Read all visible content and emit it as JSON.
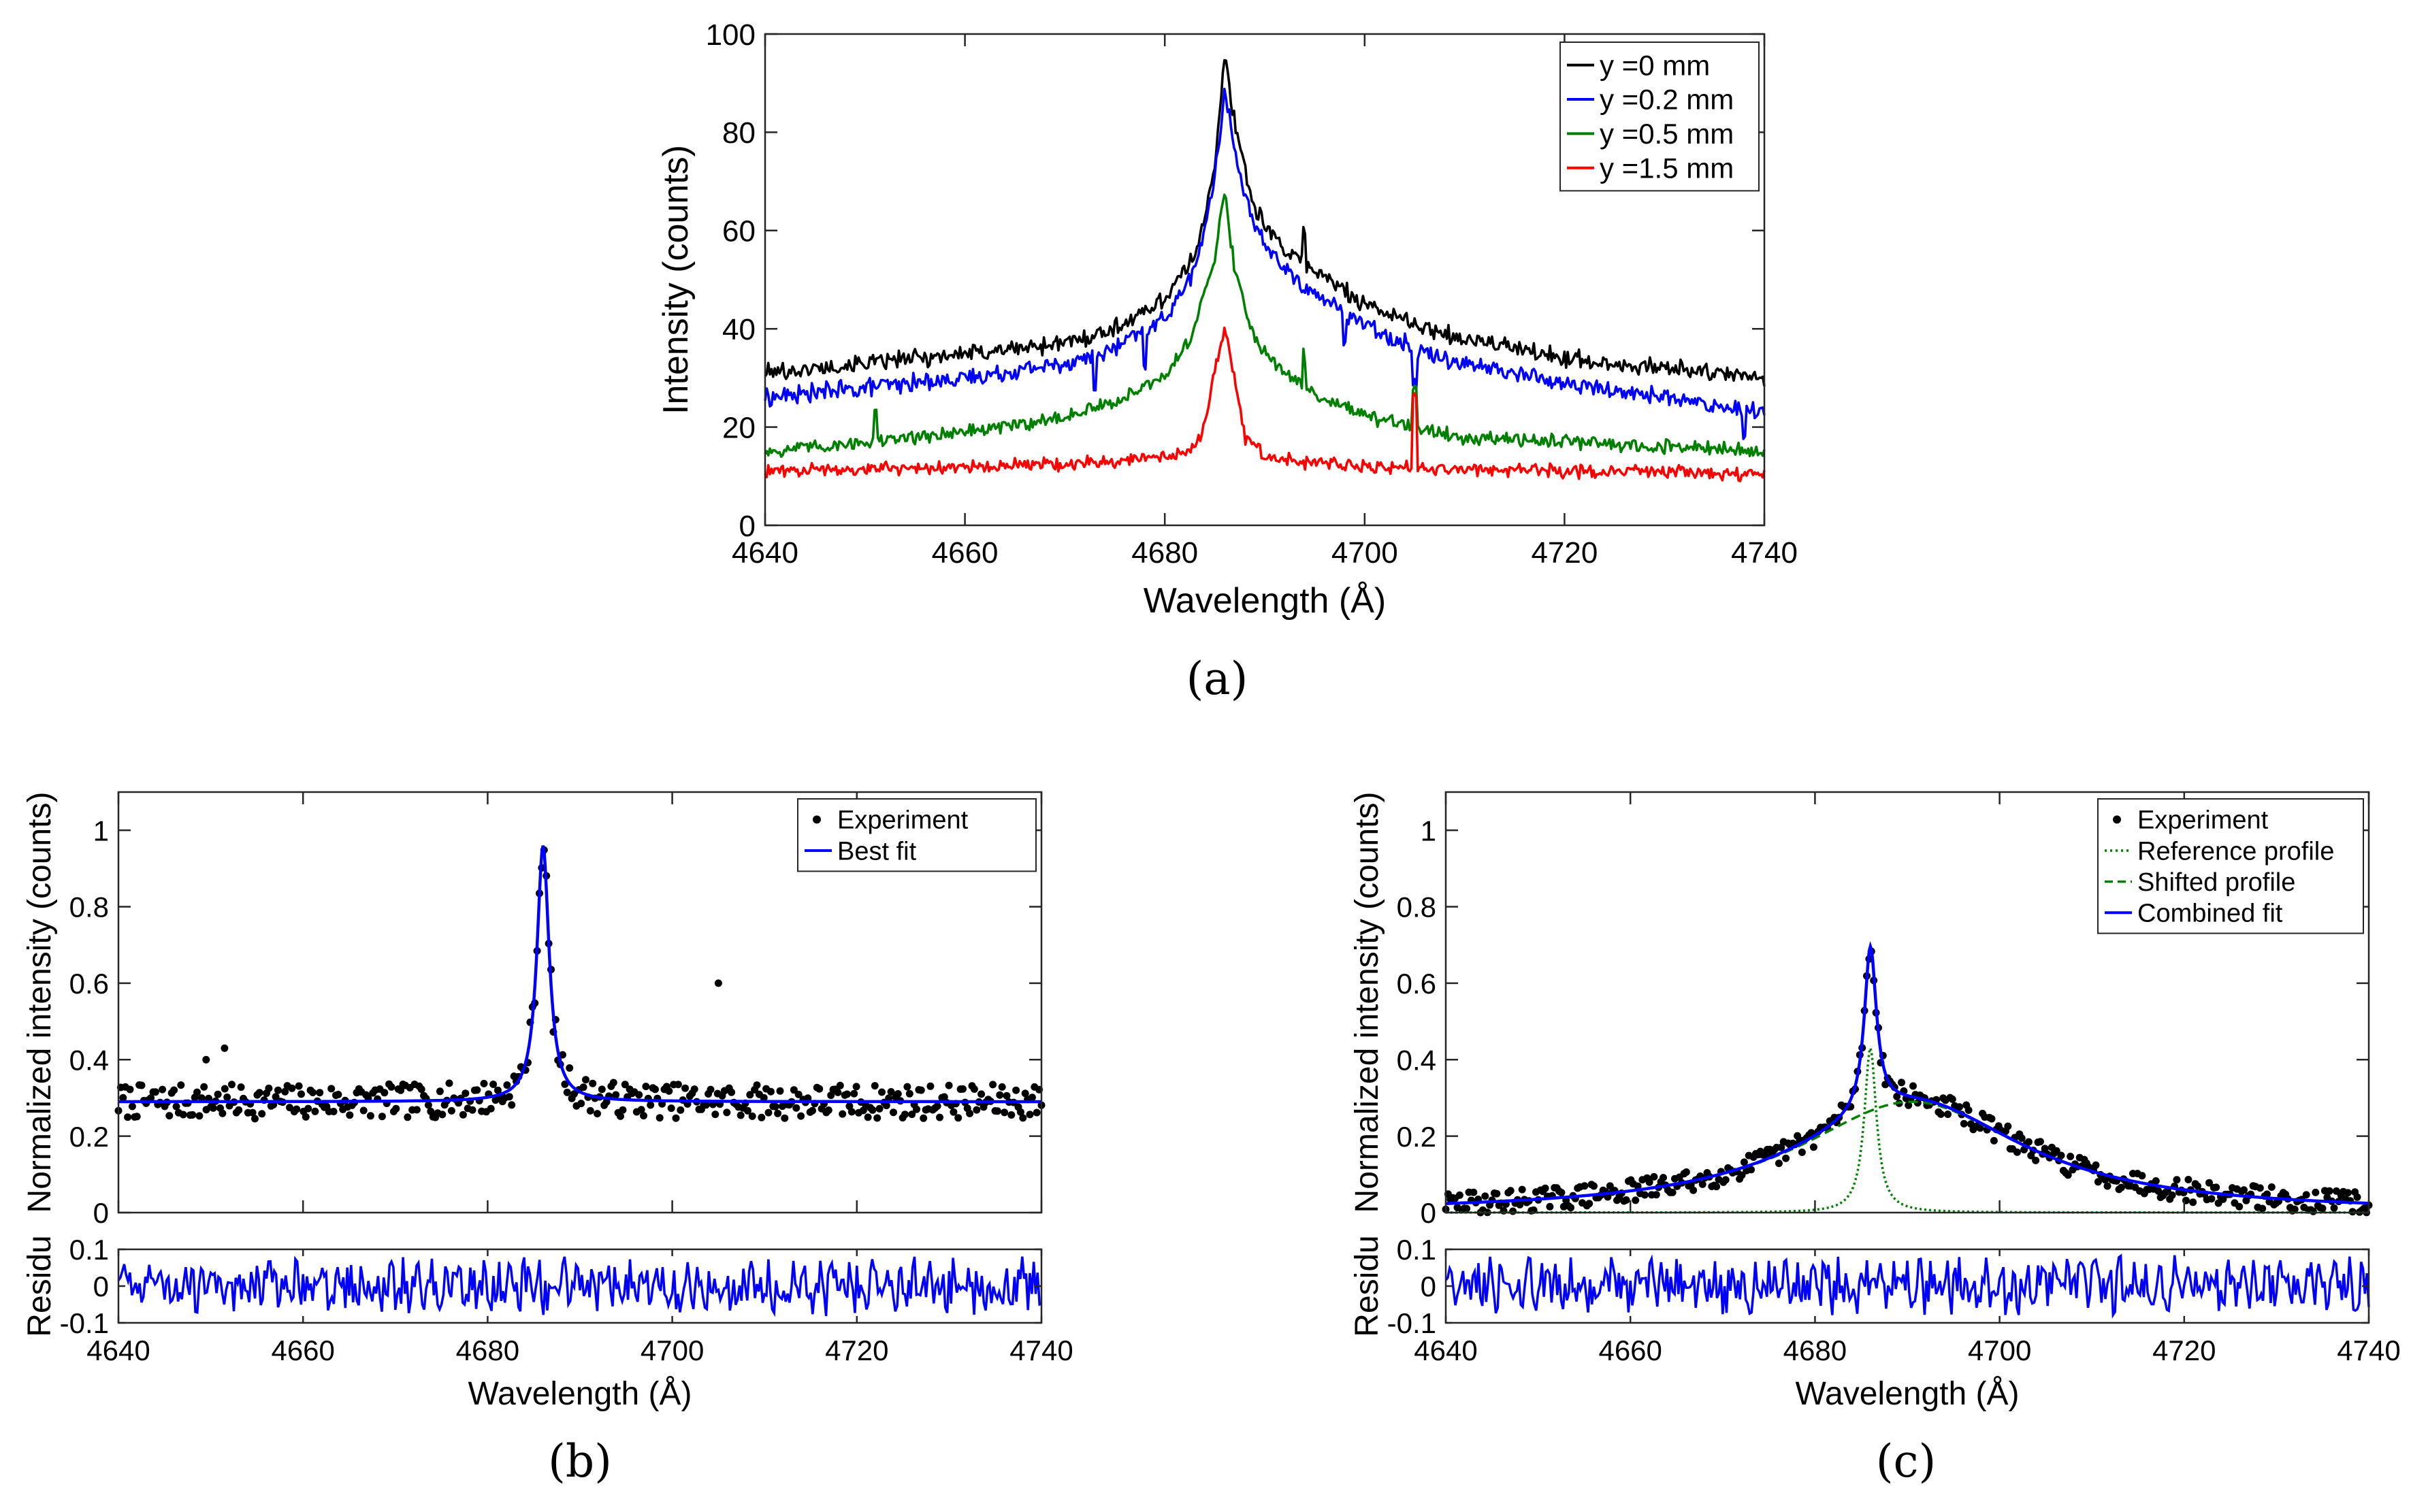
{
  "chart_data": [
    {
      "id": "a",
      "panel_label": "(a)",
      "type": "line",
      "xlabel": "Wavelength (Å)",
      "ylabel": "Intensity (counts)",
      "xlim": [
        4640,
        4740
      ],
      "ylim": [
        0,
        100
      ],
      "xticks": [
        "4640",
        "4660",
        "4680",
        "4700",
        "4720",
        "4740"
      ],
      "yticks": [
        "0",
        "20",
        "40",
        "60",
        "80",
        "100"
      ],
      "legend_position": "top-right",
      "series": [
        {
          "name": "y =0 mm",
          "color": "#000000",
          "x": [
            4640,
            4650,
            4660,
            4670,
            4675,
            4680,
            4683,
            4685,
            4686,
            4687,
            4689,
            4692,
            4695,
            4700,
            4705,
            4710,
            4720,
            4730,
            4740
          ],
          "values": [
            31,
            33,
            35,
            37,
            40,
            46,
            55,
            72,
            96,
            82,
            64,
            56,
            52,
            45,
            41,
            38,
            34,
            32,
            30
          ],
          "spikes": [
            [
              4694,
              7
            ]
          ]
        },
        {
          "name": "y =0.2 mm",
          "color": "#0000ff",
          "x": [
            4640,
            4650,
            4660,
            4670,
            4675,
            4680,
            4683,
            4685,
            4686,
            4687,
            4689,
            4692,
            4695,
            4700,
            4705,
            4710,
            4720,
            4730,
            4740
          ],
          "values": [
            26,
            28,
            30,
            33,
            36,
            42,
            52,
            70,
            89,
            76,
            60,
            52,
            47,
            41,
            36,
            33,
            29,
            26,
            23
          ],
          "spikes": [
            [
              4673,
              -8
            ],
            [
              4678,
              -7
            ],
            [
              4698,
              -6
            ],
            [
              4705,
              -7
            ],
            [
              4738,
              -5
            ]
          ]
        },
        {
          "name": "y =0.5 mm",
          "color": "#008000",
          "x": [
            4640,
            4650,
            4660,
            4670,
            4675,
            4680,
            4683,
            4685,
            4686,
            4687,
            4689,
            4692,
            4695,
            4700,
            4705,
            4710,
            4720,
            4730,
            4740
          ],
          "values": [
            15,
            17,
            19,
            22,
            25,
            30,
            40,
            55,
            68,
            52,
            38,
            31,
            27,
            22,
            20,
            18,
            17,
            16,
            15
          ],
          "spikes": [
            [
              4651,
              6
            ],
            [
              4694,
              6
            ],
            [
              4705,
              8
            ]
          ]
        },
        {
          "name": "y =1.5 mm",
          "color": "#ff0000",
          "x": [
            4640,
            4650,
            4660,
            4670,
            4675,
            4680,
            4683,
            4684,
            4685,
            4686,
            4687,
            4688,
            4690,
            4695,
            4700,
            4710,
            4720,
            4730,
            4740
          ],
          "values": [
            11,
            11.5,
            12,
            12.5,
            13,
            14,
            16,
            20,
            32,
            40,
            30,
            18,
            14,
            12.5,
            12,
            11.5,
            11,
            11,
            10
          ],
          "spikes": [
            [
              4705,
              15
            ]
          ]
        }
      ]
    },
    {
      "id": "b",
      "panel_label": "(b)",
      "type": "scatter",
      "xlabel": "Wavelength (Å)",
      "ylabel": "Normalized intensity (counts)",
      "residual_ylabel": "Residu",
      "xlim": [
        4640,
        4740
      ],
      "ylim": [
        0,
        1.1
      ],
      "residual_ylim": [
        -0.1,
        0.1
      ],
      "xticks": [
        "4640",
        "4660",
        "4680",
        "4700",
        "4720",
        "4740"
      ],
      "yticks": [
        "0",
        "0.2",
        "0.4",
        "0.6",
        "0.8",
        "1"
      ],
      "residual_yticks": [
        "-0.1",
        "0",
        "0.1"
      ],
      "legend_position": "top-right",
      "series": [
        {
          "name": "Experiment",
          "color": "#000000",
          "style": "dots"
        },
        {
          "name": "Best fit",
          "color": "#0000ff",
          "style": "solid"
        }
      ],
      "fit": {
        "model": "lorentzian",
        "center": 4686.0,
        "fwhm": 1.6,
        "amplitude": 0.67,
        "baseline": 0.29
      },
      "outliers": [
        [
          4705,
          0.6
        ],
        [
          4649.5,
          0.4
        ],
        [
          4651.5,
          0.43
        ]
      ],
      "residual_color": "#0000ff"
    },
    {
      "id": "c",
      "panel_label": "(c)",
      "type": "scatter",
      "xlabel": "Wavelength (Å)",
      "ylabel": "Normalized intensity (counts)",
      "residual_ylabel": "Residu",
      "xlim": [
        4640,
        4740
      ],
      "ylim": [
        0,
        1.1
      ],
      "residual_ylim": [
        -0.1,
        0.1
      ],
      "xticks": [
        "4640",
        "4660",
        "4680",
        "4700",
        "4720",
        "4740"
      ],
      "yticks": [
        "0",
        "0.2",
        "0.4",
        "0.6",
        "0.8",
        "1"
      ],
      "residual_yticks": [
        "-0.1",
        "0",
        "0.1"
      ],
      "legend_position": "top-right",
      "series": [
        {
          "name": "Experiment",
          "color": "#000000",
          "style": "dots"
        },
        {
          "name": "Reference profile",
          "color": "#008000",
          "style": "dotted"
        },
        {
          "name": "Shifted profile",
          "color": "#008000",
          "style": "dashed"
        },
        {
          "name": "Combined fit",
          "color": "#0000ff",
          "style": "solid"
        }
      ],
      "reference_profile": {
        "model": "lorentzian",
        "center": 4686.0,
        "fwhm": 1.6,
        "amplitude": 0.43
      },
      "shifted_profile": {
        "model": "lorentzian",
        "center": 4690.5,
        "fwhm": 30,
        "amplitude": 0.29
      },
      "residual_color": "#0000ff"
    }
  ]
}
